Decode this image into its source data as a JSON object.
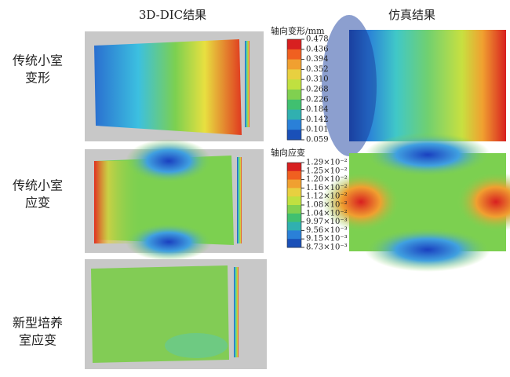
{
  "headers": {
    "dic": "3D-DIC结果",
    "sim": "仿真结果"
  },
  "rows": [
    {
      "label": [
        "传统小室",
        "变形"
      ]
    },
    {
      "label": [
        "传统小室",
        "应变"
      ]
    },
    {
      "label": [
        "新型培养",
        "室应变"
      ]
    }
  ],
  "legends": [
    {
      "title": "轴向变形/mm",
      "ticks": [
        "0.478",
        "0.436",
        "0.394",
        "0.352",
        "0.310",
        "0.268",
        "0.226",
        "0.184",
        "0.142",
        "0.101",
        "0.059"
      ]
    },
    {
      "title": "轴向应变",
      "ticks": [
        "1.29×10⁻²",
        "1.25×10⁻²",
        "1.20×10⁻²",
        "1.16×10⁻²",
        "1.12×10⁻²",
        "1.08×10⁻²",
        "1.04×10⁻²",
        "9.97×10⁻³",
        "9.56×10⁻³",
        "9.15×10⁻³",
        "8.73×10⁻³"
      ]
    }
  ]
}
